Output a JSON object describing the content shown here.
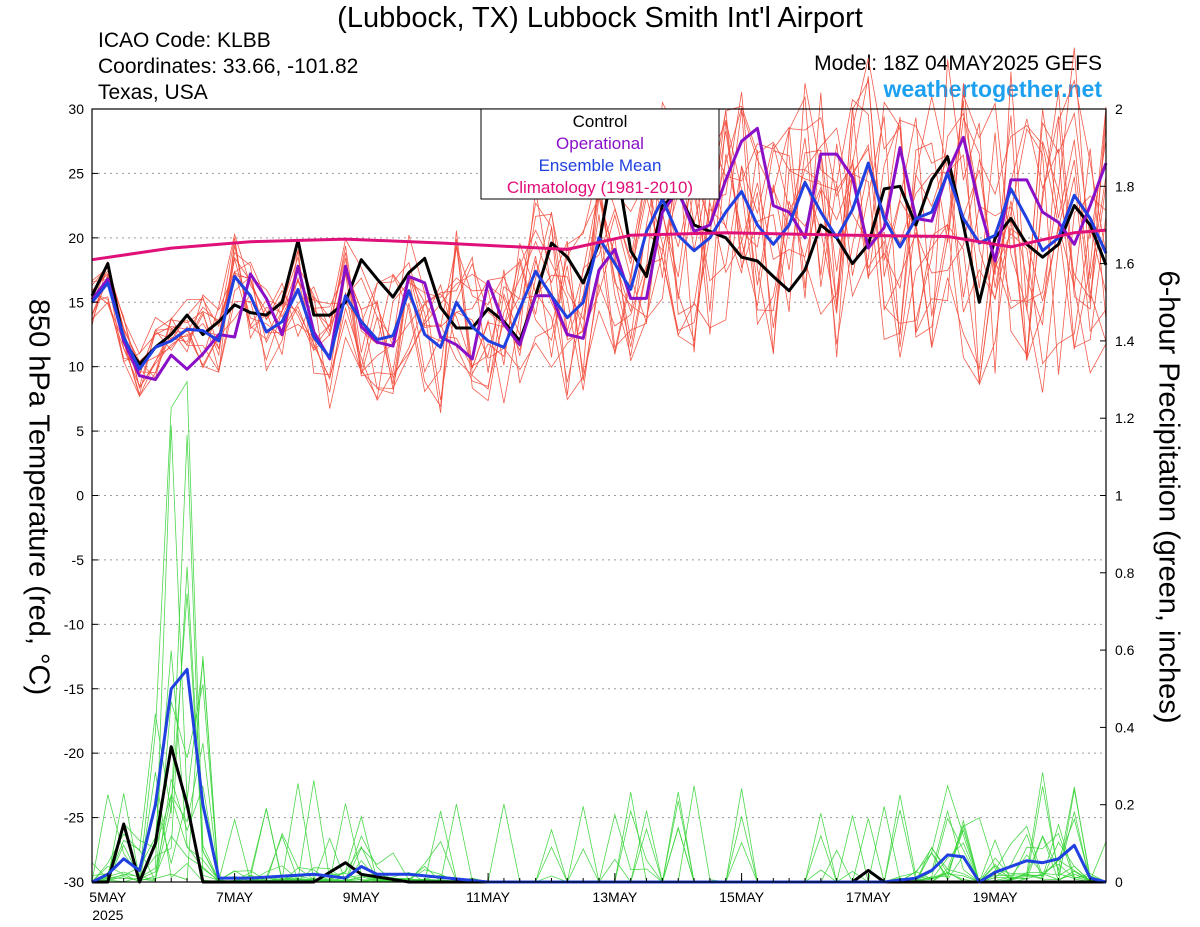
{
  "header": {
    "title": "(Lubbock, TX) Lubbock Smith Int'l Airport",
    "icao": "ICAO Code: KLBB",
    "coords": "Coordinates: 33.66, -101.82",
    "region": "Texas, USA",
    "model": "Model: 18Z 04MAY2025 GEFS",
    "brand": "weathertogether.net",
    "brand_color": "#1ea0f0"
  },
  "chart_data": {
    "type": "line",
    "title": "(Lubbock, TX) Lubbock Smith Int'l Airport",
    "ylabel": "850 hPa Temperature (red, °C)",
    "y2label": "6-hour Precipitation (green, inches)",
    "ylim": [
      -30,
      30
    ],
    "y2lim": [
      0,
      2
    ],
    "yticks": [
      30,
      25,
      20,
      15,
      10,
      5,
      0,
      -5,
      -10,
      -15,
      -20,
      -25,
      -30
    ],
    "y2ticks": [
      2,
      1.8,
      1.6,
      1.4,
      1.2,
      1,
      0.8,
      0.6,
      0.4,
      0.2,
      0
    ],
    "xlim": [
      0,
      64
    ],
    "xunit": "6-hour steps from 18Z 04MAY2025",
    "xticks": [
      {
        "step": 1,
        "label": "5MAY",
        "sub": "2025"
      },
      {
        "step": 9,
        "label": "7MAY"
      },
      {
        "step": 17,
        "label": "9MAY"
      },
      {
        "step": 25,
        "label": "11MAY"
      },
      {
        "step": 33,
        "label": "13MAY"
      },
      {
        "step": 41,
        "label": "15MAY"
      },
      {
        "step": 49,
        "label": "17MAY"
      },
      {
        "step": 57,
        "label": "19MAY"
      }
    ],
    "grid": true,
    "legend": {
      "position": "top-center",
      "entries": [
        {
          "label": "Control",
          "color": "#000000"
        },
        {
          "label": "Operational",
          "color": "#8a10c8"
        },
        {
          "label": "Ensemble Mean",
          "color": "#2040e0"
        },
        {
          "label": "Climatology (1981-2010)",
          "color": "#e0107a"
        }
      ]
    },
    "series": [
      {
        "name": "Control",
        "axis": "left",
        "color": "#000000",
        "width": 3,
        "x": [
          0,
          1,
          2,
          3,
          4,
          5,
          6,
          7,
          8,
          9,
          10,
          11,
          12,
          13,
          14,
          15,
          16,
          17,
          18,
          19,
          20,
          21,
          22,
          23,
          24,
          25,
          26,
          27,
          28,
          29,
          30,
          31,
          32,
          33,
          34,
          35,
          36,
          37,
          38,
          39,
          40,
          41,
          42,
          43,
          44,
          45,
          46,
          47,
          48,
          49,
          50,
          51,
          52,
          53,
          54,
          55,
          56,
          57,
          58,
          59,
          60,
          61,
          62,
          63,
          64
        ],
        "y": [
          15.5,
          18,
          12,
          10.2,
          11.5,
          12.5,
          14,
          12.5,
          13.5,
          14.8,
          14.2,
          14,
          15,
          19.8,
          14,
          14,
          15,
          18.3,
          16.8,
          15.4,
          17.3,
          18.4,
          14.6,
          13,
          13,
          14.5,
          13.5,
          12,
          15.5,
          19.6,
          18.5,
          16.5,
          19.5,
          26.5,
          19,
          17,
          22.5,
          23.5,
          21,
          20.5,
          20,
          18.5,
          18.2,
          17,
          15.9,
          17.5,
          21,
          20,
          18,
          19.5,
          23.8,
          24,
          21,
          24.5,
          26.3,
          21,
          15,
          20,
          21.5,
          19.5,
          18.5,
          19.5,
          22.5,
          21,
          17.9
        ]
      },
      {
        "name": "Operational",
        "axis": "left",
        "color": "#8a10c8",
        "width": 3,
        "x": [
          0,
          1,
          2,
          3,
          4,
          5,
          6,
          7,
          8,
          9,
          10,
          11,
          12,
          13,
          14,
          15,
          16,
          17,
          18,
          19,
          20,
          21,
          22,
          23,
          24,
          25,
          26,
          27,
          28,
          29,
          30,
          31,
          32,
          33,
          34,
          35,
          36,
          37,
          38,
          39,
          40,
          41,
          42,
          43,
          44,
          45,
          46,
          47,
          48,
          49,
          50,
          51,
          52,
          53,
          54,
          55,
          56,
          57,
          58,
          59,
          60,
          61,
          62,
          63,
          64
        ],
        "y": [
          15.2,
          16.8,
          12,
          9.3,
          9,
          10.9,
          9.8,
          11,
          12.5,
          12.3,
          17.2,
          15.3,
          12.5,
          17.8,
          12.7,
          10.6,
          17.8,
          13.1,
          11.9,
          11.6,
          17,
          16.5,
          12.3,
          11.7,
          10.6,
          16.6,
          13.3,
          11.7,
          15.5,
          15.5,
          12.5,
          12.2,
          17.5,
          19.1,
          15.3,
          15.3,
          22,
          23.7,
          20.5,
          21,
          24.5,
          27.5,
          28.5,
          22.5,
          22,
          20,
          26.5,
          26.5,
          24.7,
          19.2,
          20.8,
          27,
          21.5,
          21.3,
          25.1,
          27.8,
          22.5,
          18.2,
          24.5,
          24.5,
          22,
          21.2,
          19.5,
          22.5,
          25.8
        ]
      },
      {
        "name": "Ensemble Mean",
        "axis": "left",
        "color": "#2040e0",
        "width": 3,
        "x": [
          0,
          1,
          2,
          3,
          4,
          5,
          6,
          7,
          8,
          9,
          10,
          11,
          12,
          13,
          14,
          15,
          16,
          17,
          18,
          19,
          20,
          21,
          22,
          23,
          24,
          25,
          26,
          27,
          28,
          29,
          30,
          31,
          32,
          33,
          34,
          35,
          36,
          37,
          38,
          39,
          40,
          41,
          42,
          43,
          44,
          45,
          46,
          47,
          48,
          49,
          50,
          51,
          52,
          53,
          54,
          55,
          56,
          57,
          58,
          59,
          60,
          61,
          62,
          63,
          64
        ],
        "y": [
          15,
          16.5,
          12.3,
          9.8,
          11.5,
          12,
          12.9,
          12.8,
          12,
          17,
          15.5,
          12.7,
          13.5,
          16,
          12.3,
          10.7,
          15.5,
          13.5,
          12.1,
          12.4,
          15.9,
          12.5,
          11.5,
          15,
          13.1,
          12,
          11.5,
          14.5,
          17.4,
          15.5,
          13.8,
          15,
          20,
          18,
          16,
          20.5,
          23,
          20.2,
          19,
          20,
          22,
          23.6,
          21,
          19.5,
          21,
          24.3,
          22,
          20,
          22.2,
          25.8,
          21.5,
          19.3,
          21.5,
          22,
          25,
          21.5,
          19.6,
          20.2,
          23.8,
          21.5,
          19,
          20,
          23.3,
          21.5,
          18.8
        ]
      },
      {
        "name": "Climatology (1981-2010)",
        "axis": "left",
        "color": "#e0107a",
        "width": 3,
        "x": [
          0,
          5,
          10,
          16,
          22,
          30,
          34,
          40,
          48,
          54,
          58,
          62,
          64
        ],
        "y": [
          18.3,
          19.2,
          19.7,
          19.9,
          19.6,
          19.1,
          20.2,
          20.4,
          20.2,
          20.1,
          19.3,
          20.4,
          20.6
        ]
      },
      {
        "name": "Control",
        "axis": "right",
        "color": "#000000",
        "width": 3,
        "x": [
          0,
          1,
          2,
          3,
          4,
          5,
          6,
          7,
          8,
          9,
          10,
          14,
          16,
          17,
          20,
          25,
          30,
          40,
          48,
          49,
          50,
          52,
          56,
          60,
          64
        ],
        "y": [
          0,
          0,
          0.15,
          0,
          0.1,
          0.35,
          0.2,
          0,
          0,
          0,
          0,
          0,
          0.05,
          0.02,
          0,
          0,
          0,
          0,
          0,
          0.03,
          0,
          0,
          0,
          0,
          0
        ]
      },
      {
        "name": "Ensemble Mean",
        "axis": "right",
        "color": "#2040e0",
        "width": 3,
        "x": [
          0,
          1,
          2,
          3,
          4,
          5,
          6,
          7,
          8,
          10,
          14,
          16,
          17,
          18,
          20,
          25,
          30,
          40,
          48,
          50,
          52,
          53,
          54,
          55,
          56,
          57,
          58,
          59,
          60,
          61,
          62,
          63,
          64
        ],
        "y": [
          0,
          0.02,
          0.06,
          0.03,
          0.2,
          0.5,
          0.55,
          0.2,
          0.01,
          0.01,
          0.02,
          0.01,
          0.04,
          0.02,
          0.02,
          0,
          0,
          0,
          0,
          0,
          0.01,
          0.03,
          0.07,
          0.065,
          0,
          0.025,
          0.04,
          0.055,
          0.05,
          0.06,
          0.095,
          0.01,
          0
        ]
      }
    ],
    "ensemble_members": {
      "temperature_color": "#f24a3a",
      "precip_color": "#3ad43a",
      "temperature_count": 14,
      "precip_count": 14
    }
  }
}
